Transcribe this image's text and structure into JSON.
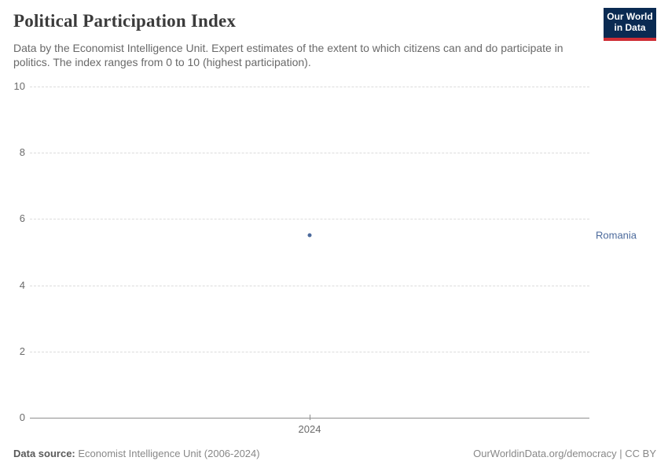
{
  "header": {
    "title": "Political Participation Index",
    "subtitle": "Data by the Economist Intelligence Unit. Expert estimates of the extent to which citizens can and do participate in politics. The index ranges from 0 to 10 (highest participation).",
    "logo": {
      "line1": "Our World",
      "line2": "in Data",
      "bg_color": "#0a2a52",
      "accent_color": "#cf2d35"
    }
  },
  "chart_data": {
    "type": "scatter",
    "title": "Political Participation Index",
    "xlabel": "",
    "ylabel": "",
    "x": [
      2024
    ],
    "x_tick_labels": [
      "2024"
    ],
    "y_ticks": [
      0,
      2,
      4,
      6,
      8,
      10
    ],
    "ylim": [
      0,
      10
    ],
    "grid": "horizontal-dashed",
    "legend_position": "entity-label-right",
    "series": [
      {
        "name": "Romania",
        "color": "#4c6a9c",
        "x": [
          2024
        ],
        "values": [
          5.5
        ]
      }
    ]
  },
  "footer": {
    "datasource_label": "Data source:",
    "datasource_text": " Economist Intelligence Unit (2006-2024)",
    "license_text": "OurWorldinData.org/democracy | CC BY"
  }
}
